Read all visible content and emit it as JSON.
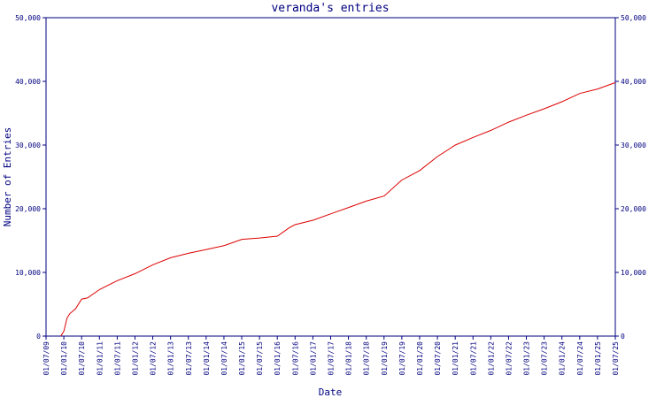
{
  "chart_data": {
    "type": "line",
    "title": "veranda's entries",
    "xlabel": "Date",
    "ylabel": "Number of Entries",
    "ylim": [
      0,
      50000
    ],
    "xlim": [
      "2009-07-01",
      "2025-07-01"
    ],
    "grid": false,
    "legend": "none",
    "y_ticks": [
      0,
      10000,
      20000,
      30000,
      40000,
      50000
    ],
    "y_tick_labels": [
      "0",
      "10,000",
      "20,000",
      "30,000",
      "40,000",
      "50,000"
    ],
    "x_tick_labels": [
      "01/07/09",
      "01/01/10",
      "01/07/10",
      "01/01/11",
      "01/07/11",
      "01/01/12",
      "01/07/12",
      "01/01/13",
      "01/07/13",
      "01/01/14",
      "01/07/14",
      "01/01/15",
      "01/07/15",
      "01/01/16",
      "01/07/16",
      "01/01/17",
      "01/07/17",
      "01/01/18",
      "01/07/18",
      "01/01/19",
      "01/07/19",
      "01/01/20",
      "01/07/20",
      "01/01/21",
      "01/07/21",
      "01/01/22",
      "01/07/22",
      "01/01/23",
      "01/07/23",
      "01/01/24",
      "01/07/24",
      "01/01/25",
      "01/07/25"
    ],
    "colors": {
      "axis": "#000080",
      "line": "#dd0000",
      "background": "#ffffff"
    },
    "series": [
      {
        "x": [
          "2009-12-01",
          "2010-01-01",
          "2010-02-01",
          "2010-03-01",
          "2010-05-01",
          "2010-07-01",
          "2010-09-01",
          "2011-01-01",
          "2011-07-01",
          "2012-01-01",
          "2012-04-01",
          "2012-07-01",
          "2013-01-01",
          "2013-07-01",
          "2014-01-01",
          "2014-07-01",
          "2015-01-01",
          "2015-07-01",
          "2016-01-01",
          "2016-05-01",
          "2016-07-01",
          "2017-01-01",
          "2017-07-01",
          "2018-01-01",
          "2018-07-01",
          "2019-01-01",
          "2019-07-01",
          "2020-01-01",
          "2020-07-01",
          "2021-01-01",
          "2021-07-01",
          "2022-01-01",
          "2022-07-01",
          "2023-01-01",
          "2023-07-01",
          "2024-01-01",
          "2024-07-01",
          "2025-01-01",
          "2025-07-01"
        ],
        "y": [
          0,
          800,
          2800,
          3500,
          4300,
          5800,
          6000,
          7300,
          8700,
          9800,
          10500,
          11200,
          12300,
          13000,
          13600,
          14200,
          15200,
          15400,
          15700,
          17000,
          17500,
          18200,
          19200,
          20200,
          21200,
          22000,
          24500,
          26000,
          28200,
          30000,
          31200,
          32300,
          33600,
          34700,
          35700,
          36800,
          38100,
          38800,
          39800
        ]
      }
    ]
  }
}
